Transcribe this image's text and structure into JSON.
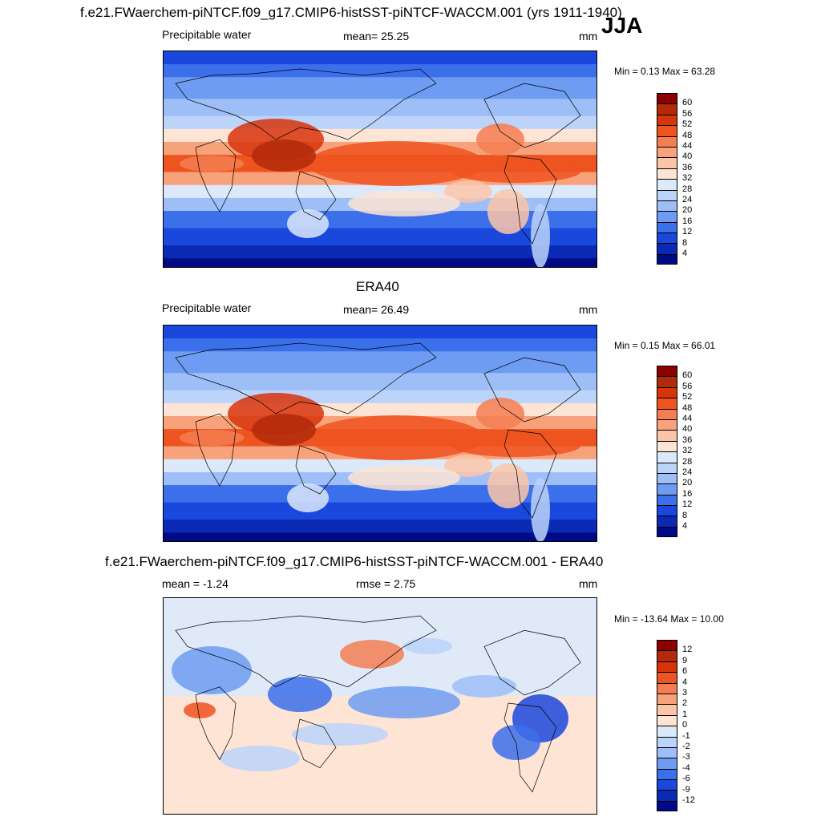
{
  "header": {
    "title": "f.e21.FWaerchem-piNTCF.f09_g17.CMIP6-histSST-piNTCF-WACCM.001 (yrs 1911-1940)",
    "season": "JJA"
  },
  "panels": [
    {
      "title": "",
      "variable": "Precipitable water",
      "stat": "mean=  25.25",
      "units": "mm",
      "minmax": "Min =   0.13 Max =  63.28",
      "colorbar_labels": [
        "60",
        "56",
        "52",
        "48",
        "44",
        "40",
        "36",
        "32",
        "28",
        "24",
        "20",
        "16",
        "12",
        "8",
        "4"
      ],
      "colors": [
        "#8b0000",
        "#b22a0a",
        "#d8340c",
        "#ee5420",
        "#f47e52",
        "#f8a27c",
        "#fbc6a8",
        "#fde4d4",
        "#dbe9fb",
        "#bcd4fa",
        "#9dbef7",
        "#6e9cf2",
        "#3c6fea",
        "#1b48dc",
        "#0a2ab4",
        "#000a86"
      ]
    },
    {
      "title": "ERA40",
      "variable": "Precipitable water",
      "stat": "mean=  26.49",
      "units": "mm",
      "minmax": "Min =   0.15 Max =  66.01",
      "colorbar_labels": [
        "60",
        "56",
        "52",
        "48",
        "44",
        "40",
        "36",
        "32",
        "28",
        "24",
        "20",
        "16",
        "12",
        "8",
        "4"
      ],
      "colors": [
        "#8b0000",
        "#b22a0a",
        "#d8340c",
        "#ee5420",
        "#f47e52",
        "#f8a27c",
        "#fbc6a8",
        "#fde4d4",
        "#dbe9fb",
        "#bcd4fa",
        "#9dbef7",
        "#6e9cf2",
        "#3c6fea",
        "#1b48dc",
        "#0a2ab4",
        "#000a86"
      ]
    },
    {
      "title": "f.e21.FWaerchem-piNTCF.f09_g17.CMIP6-histSST-piNTCF-WACCM.001 - ERA40",
      "variable": "mean =  -1.24",
      "stat": "rmse =   2.75",
      "units": "mm",
      "minmax": "Min = -13.64 Max =  10.00",
      "colorbar_labels": [
        "12",
        "9",
        "6",
        "4",
        "3",
        "2",
        "1",
        "0",
        "-1",
        "-2",
        "-3",
        "-4",
        "-6",
        "-9",
        "-12"
      ],
      "colors": [
        "#8b0000",
        "#b22a0a",
        "#d8340c",
        "#ee5420",
        "#f47e52",
        "#f8a27c",
        "#fbc6a8",
        "#fde4d4",
        "#dbe9fb",
        "#bcd4fa",
        "#9dbef7",
        "#6e9cf2",
        "#3c6fea",
        "#1b48dc",
        "#0a2ab4",
        "#000a86"
      ]
    }
  ]
}
